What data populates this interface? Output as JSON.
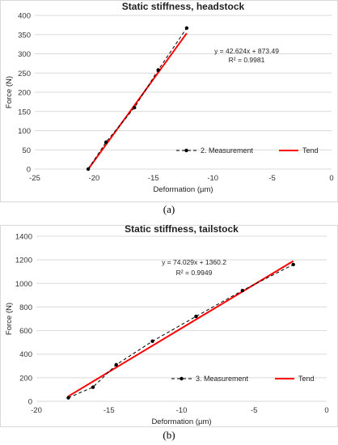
{
  "chart_data": [
    {
      "type": "scatter",
      "title": "Static stiffness, headstock",
      "xlabel": "Deformation (µm)",
      "ylabel": "Force (N)",
      "xlim": [
        -25,
        0
      ],
      "ylim": [
        0,
        400
      ],
      "xticks": [
        -25,
        -20,
        -15,
        -10,
        -5,
        0
      ],
      "yticks": [
        0,
        50,
        100,
        150,
        200,
        250,
        300,
        350,
        400
      ],
      "grid": "horizontal",
      "series": [
        {
          "name": "2. Measurement",
          "style": "dashed-with-markers",
          "color": "#000000",
          "x": [
            -20.5,
            -19.0,
            -16.6,
            -14.6,
            -12.2
          ],
          "y": [
            0,
            70,
            160,
            258,
            367
          ]
        },
        {
          "name": "Tend",
          "style": "solid",
          "color": "#ff0000",
          "x": [
            -20.5,
            -12.2
          ],
          "y": [
            -0.3,
            353.5
          ]
        }
      ],
      "annotations": [
        "y = 42.624x + 873.49",
        "R² = 0.9981"
      ],
      "legend": "bottom-right",
      "caption": "(a)"
    },
    {
      "type": "scatter",
      "title": "Static stiffness, tailstock",
      "xlabel": "Deformation (µm)",
      "ylabel": "Force (N)",
      "xlim": [
        -20,
        0
      ],
      "ylim": [
        0,
        1400
      ],
      "xticks": [
        -20,
        -15,
        -10,
        -5,
        0
      ],
      "yticks": [
        0,
        200,
        400,
        600,
        800,
        1000,
        1200,
        1400
      ],
      "grid": "horizontal",
      "series": [
        {
          "name": "3. Measurement",
          "style": "dashed-with-markers",
          "color": "#000000",
          "x": [
            -17.8,
            -16.1,
            -14.5,
            -12.0,
            -9.0,
            -5.8,
            -2.3
          ],
          "y": [
            30,
            120,
            310,
            510,
            720,
            940,
            1160
          ]
        },
        {
          "name": "Tend",
          "style": "solid",
          "color": "#ff0000",
          "x": [
            -17.8,
            -2.3
          ],
          "y": [
            42.5,
            1189.9
          ]
        }
      ],
      "annotations": [
        "y = 74.029x + 1360.2",
        "R² = 0.9949"
      ],
      "legend": "bottom-right",
      "caption": "(b)"
    }
  ]
}
